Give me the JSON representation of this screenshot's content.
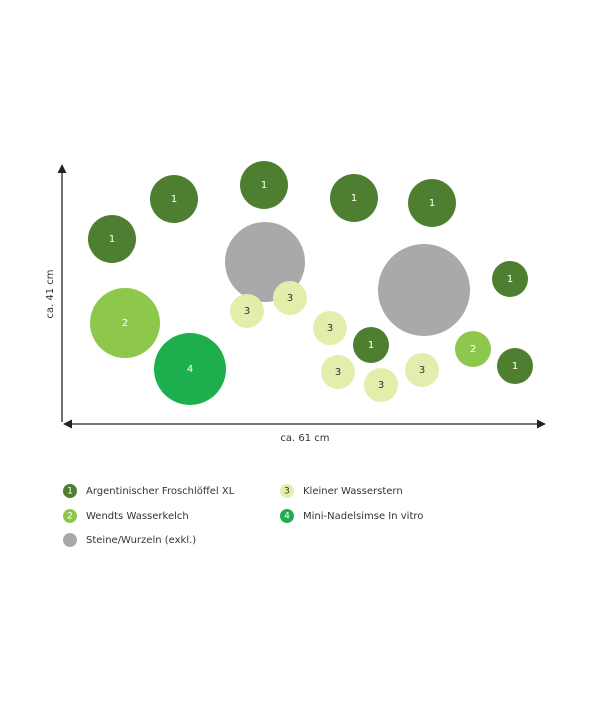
{
  "dimensions": {
    "height": "ca. 41 cm",
    "width": "ca. 61 cm"
  },
  "plants": [
    {
      "label": "1"
    },
    {
      "label": "1"
    },
    {
      "label": "1"
    },
    {
      "label": "1"
    },
    {
      "label": "1"
    },
    {
      "label": "1"
    },
    {
      "label": "1"
    },
    {
      "label": "1"
    },
    {
      "label": "2"
    },
    {
      "label": "2"
    },
    {
      "label": "3"
    },
    {
      "label": "3"
    },
    {
      "label": "3"
    },
    {
      "label": "3"
    },
    {
      "label": "3"
    },
    {
      "label": "3"
    },
    {
      "label": "4"
    }
  ],
  "legend": [
    {
      "number": "1",
      "label": "Argentinischer Froschlöffel XL",
      "color": "#4e7f31"
    },
    {
      "number": "2",
      "label": "Wendts Wasserkelch",
      "color": "#8dc84c"
    },
    {
      "label": "Steine/Wurzeln (exkl.)",
      "color": "#a9a9a9"
    },
    {
      "number": "3",
      "label": "Kleiner Wasserstern",
      "color": "#e2eeab"
    },
    {
      "number": "4",
      "label": "Mini-Nadelsimse In vitro",
      "color": "#1daf4d"
    }
  ]
}
